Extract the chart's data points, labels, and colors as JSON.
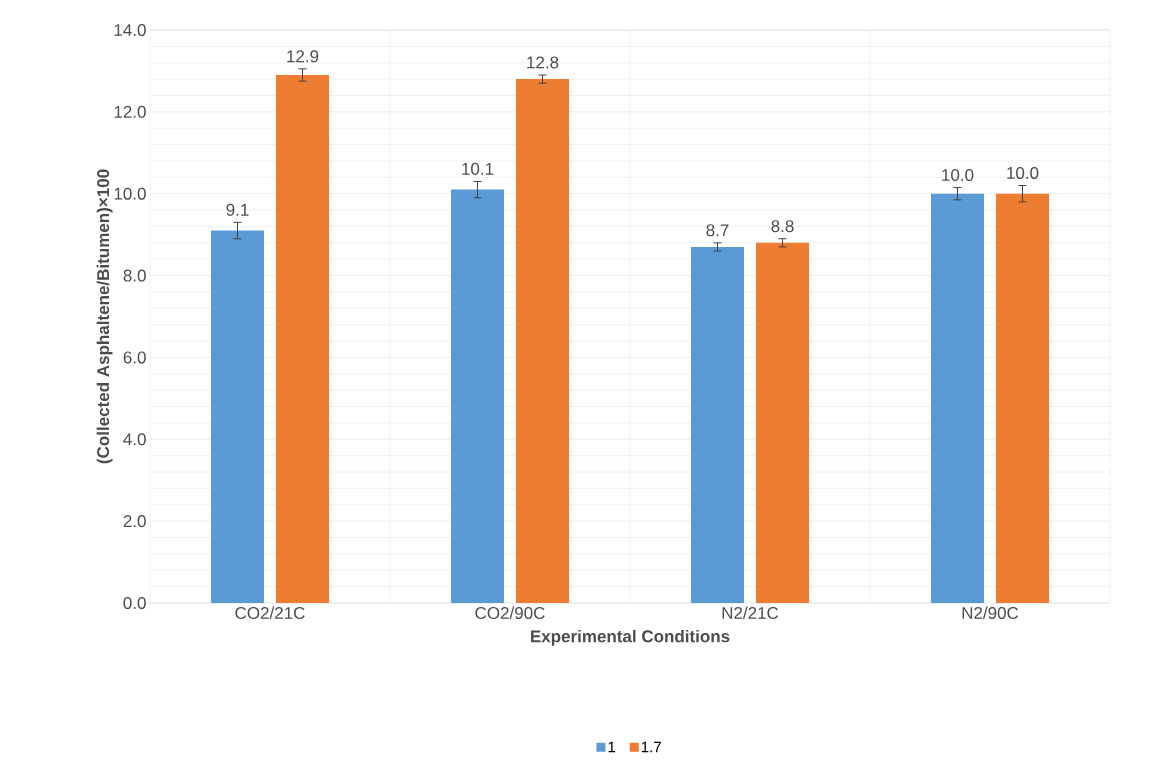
{
  "chart_data": {
    "type": "bar",
    "xlabel": "Experimental Conditions",
    "ylabel": "(Collected Asphaltene/Bitumen)×100",
    "categories": [
      "CO2/21C",
      "CO2/90C",
      "N2/21C",
      "N2/90C"
    ],
    "series": [
      {
        "name": "1",
        "color": "#5b9bd5",
        "values": [
          9.1,
          10.1,
          8.7,
          10.0
        ],
        "errors": [
          0.2,
          0.2,
          0.1,
          0.15
        ],
        "value_labels": [
          "9.1",
          "10.1",
          "8.7",
          "10.0"
        ]
      },
      {
        "name": "1.7",
        "color": "#ed7d31",
        "values": [
          12.9,
          12.8,
          8.8,
          10.0
        ],
        "errors": [
          0.15,
          0.1,
          0.1,
          0.2
        ],
        "value_labels": [
          "12.9",
          "12.8",
          "8.8",
          "10.0"
        ]
      }
    ],
    "ylim": [
      0,
      14
    ],
    "yticks": [
      {
        "value": 0,
        "label": "0.0"
      },
      {
        "value": 2,
        "label": "2.0"
      },
      {
        "value": 4,
        "label": "4.0"
      },
      {
        "value": 6,
        "label": "6.0"
      },
      {
        "value": 8,
        "label": "8.0"
      },
      {
        "value": 10,
        "label": "10.0"
      },
      {
        "value": 12,
        "label": "12.0"
      },
      {
        "value": 14,
        "label": "14.0"
      }
    ],
    "grid": true,
    "legend": "bottom"
  }
}
